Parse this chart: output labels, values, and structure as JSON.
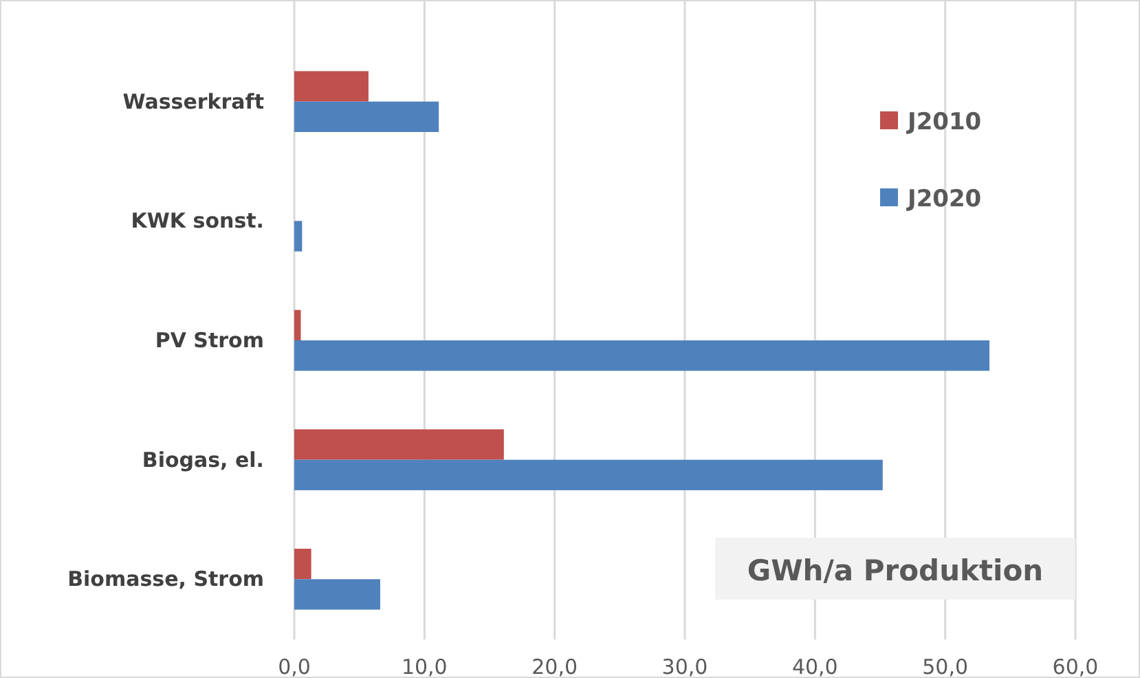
{
  "chart_data": {
    "type": "bar",
    "orientation": "horizontal",
    "title": "GWh/a Produktion",
    "categories": [
      "Wasserkraft",
      "KWK sonst.",
      "PV Strom",
      "Biogas, el.",
      "Biomasse, Strom"
    ],
    "series": [
      {
        "name": "J2010",
        "color": "#c0504d",
        "values": [
          5.7,
          0,
          0.5,
          16.1,
          1.3
        ]
      },
      {
        "name": "J2020",
        "color": "#4f81bd",
        "values": [
          11.1,
          0.6,
          53.4,
          45.2,
          6.6
        ]
      }
    ],
    "xlim": [
      0,
      60
    ],
    "xticks": [
      {
        "value": 0,
        "label": "0,0"
      },
      {
        "value": 10,
        "label": "10,0"
      },
      {
        "value": 20,
        "label": "20,0"
      },
      {
        "value": 30,
        "label": "30,0"
      },
      {
        "value": 40,
        "label": "40,0"
      },
      {
        "value": 50,
        "label": "50,0"
      },
      {
        "value": 60,
        "label": "60,0"
      }
    ],
    "grid": "x",
    "legend": "top right"
  }
}
